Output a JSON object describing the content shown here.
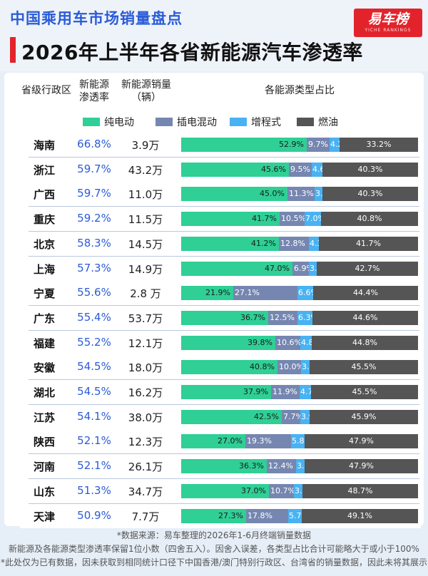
{
  "header": {
    "subtitle": "中国乘用车市场销量盘点",
    "title": "2026年上半年各省新能源汽车渗透率",
    "logo": "易车榜",
    "logo_tagline": "YICHE RANKINGS"
  },
  "columns": {
    "province": "省级行政区",
    "rate_line1": "新能源",
    "rate_line2": "渗透率",
    "sales_line1": "新能源销量",
    "sales_line2": "（辆）",
    "share": "各能源类型占比"
  },
  "colors": {
    "bev": "#2fcf96",
    "phev": "#7586b0",
    "erev": "#49b2f2",
    "ice": "#555555",
    "accent_blue": "#2b5bd7",
    "accent_red": "#e3232b"
  },
  "chart_data": {
    "type": "bar",
    "orientation": "horizontal",
    "stacked": true,
    "percent_stacked": true,
    "legend_position": "top",
    "series": [
      {
        "name": "纯电动",
        "values": [
          52.9,
          45.6,
          45.0,
          41.7,
          41.2,
          47.0,
          21.9,
          36.7,
          39.8,
          40.8,
          37.9,
          42.5,
          27.0,
          36.3,
          37.0,
          27.3
        ]
      },
      {
        "name": "插电混动",
        "values": [
          9.7,
          9.5,
          11.3,
          10.5,
          12.8,
          6.9,
          27.1,
          12.5,
          10.6,
          10.0,
          11.9,
          7.7,
          19.3,
          12.4,
          10.7,
          17.8
        ]
      },
      {
        "name": "增程式",
        "values": [
          4.2,
          4.6,
          3.4,
          7.0,
          4.3,
          3.4,
          6.6,
          6.3,
          4.8,
          3.7,
          4.7,
          3.9,
          5.8,
          3.5,
          3.7,
          5.7
        ]
      },
      {
        "name": "燃油",
        "values": [
          33.2,
          40.3,
          40.3,
          40.8,
          41.7,
          42.7,
          44.4,
          44.6,
          44.8,
          45.5,
          45.5,
          45.9,
          47.9,
          47.9,
          48.7,
          49.1
        ]
      }
    ],
    "rows": [
      {
        "province": "海南",
        "rate": "66.8%",
        "sales": "3.9万"
      },
      {
        "province": "浙江",
        "rate": "59.7%",
        "sales": "43.2万"
      },
      {
        "province": "广西",
        "rate": "59.7%",
        "sales": "11.0万"
      },
      {
        "province": "重庆",
        "rate": "59.2%",
        "sales": "11.5万"
      },
      {
        "province": "北京",
        "rate": "58.3%",
        "sales": "14.5万"
      },
      {
        "province": "上海",
        "rate": "57.3%",
        "sales": "14.9万"
      },
      {
        "province": "宁夏",
        "rate": "55.6%",
        "sales": "2.8 万"
      },
      {
        "province": "广东",
        "rate": "55.4%",
        "sales": "53.7万"
      },
      {
        "province": "福建",
        "rate": "55.2%",
        "sales": "12.1万"
      },
      {
        "province": "安徽",
        "rate": "54.5%",
        "sales": "18.0万"
      },
      {
        "province": "湖北",
        "rate": "54.5%",
        "sales": "16.2万"
      },
      {
        "province": "江苏",
        "rate": "54.1%",
        "sales": "38.0万"
      },
      {
        "province": "陕西",
        "rate": "52.1%",
        "sales": "12.3万"
      },
      {
        "province": "河南",
        "rate": "52.1%",
        "sales": "26.1万"
      },
      {
        "province": "山东",
        "rate": "51.3%",
        "sales": "34.7万"
      },
      {
        "province": "天津",
        "rate": "50.9%",
        "sales": "7.7万"
      }
    ]
  },
  "footer": {
    "line1": "*数据来源：易车整理的2026年1-6月终端销量数据",
    "line2": "新能源及各能源类型渗透率保留1位小数（四舍五入）。因舍入误差，各类型占比合计可能略大于或小于100%",
    "line3": "*此处仅为已有数据，因未获取到相同统计口径下中国香港/澳门特别行政区、台湾省的销量数据，因此未将其展示"
  }
}
